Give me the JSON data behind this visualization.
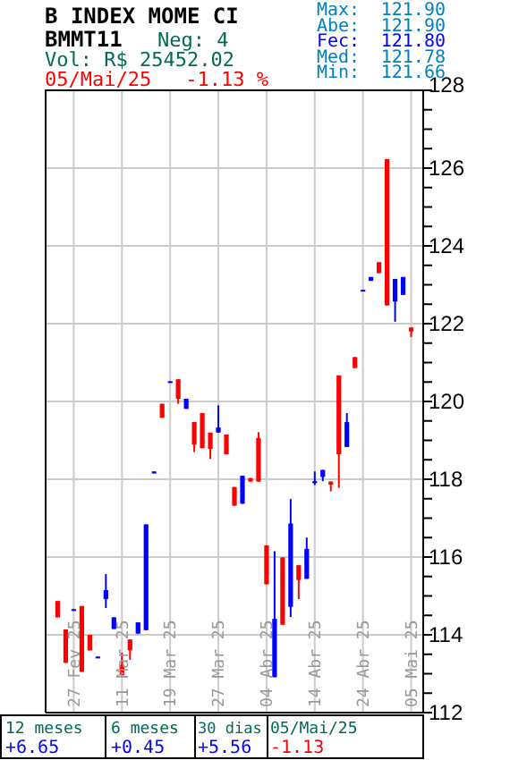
{
  "chart_data": {
    "type": "candlestick",
    "title": "B INDEX MOME CI",
    "subtitle": "BMMT11",
    "categories": [
      null,
      null,
      "27 Fev 25",
      null,
      null,
      null,
      null,
      null,
      "11 Mar 25",
      null,
      null,
      null,
      null,
      null,
      "19 Mar 25",
      null,
      null,
      null,
      null,
      null,
      "27 Mar 25",
      null,
      null,
      null,
      null,
      null,
      "04 Abr 25",
      null,
      null,
      null,
      null,
      null,
      "14 Abr 25",
      null,
      null,
      null,
      null,
      null,
      "24 Abr 25",
      null,
      null,
      null,
      null,
      null,
      "05 Mai 25"
    ],
    "ohlc": [
      [
        114.87,
        114.87,
        114.45,
        114.45
      ],
      [
        114.14,
        114.14,
        113.28,
        113.28
      ],
      [
        114.65,
        114.66,
        114.64,
        114.66
      ],
      [
        114.74,
        114.74,
        113.05,
        113.05
      ],
      [
        114.0,
        114.0,
        113.6,
        113.6
      ],
      [
        113.42,
        113.44,
        113.42,
        113.44
      ],
      [
        114.92,
        115.56,
        114.69,
        115.15
      ],
      [
        114.15,
        114.45,
        114.15,
        114.45
      ],
      [
        113.23,
        113.54,
        112.96,
        112.96
      ],
      [
        113.88,
        113.88,
        113.36,
        113.6
      ],
      [
        114.03,
        114.32,
        114.03,
        114.32
      ],
      [
        114.12,
        116.84,
        114.12,
        116.84
      ],
      [
        118.15,
        118.2,
        118.15,
        118.2
      ],
      [
        119.94,
        119.94,
        119.58,
        119.58
      ],
      [
        120.5,
        120.52,
        120.5,
        120.52
      ],
      [
        120.57,
        120.57,
        119.94,
        120.07
      ],
      [
        119.81,
        120.07,
        119.81,
        120.07
      ],
      [
        119.47,
        119.47,
        118.7,
        118.89
      ],
      [
        119.7,
        119.7,
        118.8,
        118.8
      ],
      [
        119.2,
        119.2,
        118.52,
        118.78
      ],
      [
        119.2,
        119.9,
        119.2,
        119.33
      ],
      [
        119.15,
        119.15,
        118.64,
        118.64
      ],
      [
        117.8,
        117.8,
        117.32,
        117.32
      ],
      [
        117.37,
        118.09,
        117.37,
        118.09
      ],
      [
        118.03,
        118.03,
        117.94,
        117.94
      ],
      [
        119.06,
        119.21,
        117.94,
        117.94
      ],
      [
        116.3,
        116.3,
        115.3,
        115.3
      ],
      [
        112.91,
        116.15,
        112.91,
        114.41
      ],
      [
        115.99,
        115.99,
        114.26,
        114.26
      ],
      [
        114.72,
        117.49,
        114.46,
        116.86
      ],
      [
        115.79,
        115.79,
        114.92,
        115.41
      ],
      [
        115.44,
        116.5,
        115.44,
        116.21
      ],
      [
        117.9,
        118.2,
        117.85,
        117.95
      ],
      [
        118.06,
        118.24,
        117.95,
        118.24
      ],
      [
        117.94,
        117.94,
        117.69,
        117.86
      ],
      [
        120.67,
        120.67,
        117.78,
        118.64
      ],
      [
        118.83,
        119.7,
        118.83,
        119.47
      ],
      [
        121.14,
        121.14,
        120.86,
        120.86
      ],
      [
        122.85,
        122.87,
        122.85,
        122.87
      ],
      [
        123.1,
        123.2,
        123.1,
        123.2
      ],
      [
        123.58,
        123.58,
        123.3,
        123.3
      ],
      [
        126.23,
        126.23,
        122.47,
        122.47
      ],
      [
        122.57,
        123.15,
        122.05,
        123.15
      ],
      [
        122.74,
        123.2,
        122.74,
        123.2
      ],
      [
        121.9,
        121.9,
        121.66,
        121.8
      ]
    ],
    "colors": [
      "#ff0000",
      "#ff0000",
      "#0000ff",
      "#ff0000",
      "#ff0000",
      "#0000ff",
      "#0000ff",
      "#0000ff",
      "#ff0000",
      "#ff0000",
      "#0000ff",
      "#0000ff",
      "#0000ff",
      "#ff0000",
      "#0000ff",
      "#ff0000",
      "#0000ff",
      "#ff0000",
      "#ff0000",
      "#ff0000",
      "#0000ff",
      "#ff0000",
      "#ff0000",
      "#0000ff",
      "#ff0000",
      "#ff0000",
      "#ff0000",
      "#0000ff",
      "#ff0000",
      "#0000ff",
      "#ff0000",
      "#0000ff",
      "#0000ff",
      "#0000ff",
      "#ff0000",
      "#ff0000",
      "#0000ff",
      "#ff0000",
      "#0000ff",
      "#0000ff",
      "#ff0000",
      "#ff0000",
      "#0000ff",
      "#0000ff",
      "#ff0000"
    ],
    "ylim": [
      112,
      128
    ],
    "yticks": [
      112,
      {
        "value": 112.5,
        "label": null
      },
      {
        "value": 113,
        "label": null
      },
      {
        "value": 113.5,
        "label": null
      },
      114,
      {
        "value": 114.5,
        "label": null
      },
      {
        "value": 115,
        "label": null
      },
      {
        "value": 115.5,
        "label": null
      },
      116,
      {
        "value": 116.5,
        "label": null
      },
      {
        "value": 117,
        "label": null
      },
      {
        "value": 117.5,
        "label": null
      },
      118,
      {
        "value": 118.5,
        "label": null
      },
      {
        "value": 119,
        "label": null
      },
      {
        "value": 119.5,
        "label": null
      },
      120,
      {
        "value": 120.5,
        "label": null
      },
      {
        "value": 121,
        "label": null
      },
      {
        "value": 121.5,
        "label": null
      },
      122,
      {
        "value": 122.5,
        "label": null
      },
      {
        "value": 123,
        "label": null
      },
      {
        "value": 123.5,
        "label": null
      },
      124,
      {
        "value": 124.5,
        "label": null
      },
      {
        "value": 125,
        "label": null
      },
      {
        "value": 125.5,
        "label": null
      },
      126,
      {
        "value": 126.5,
        "label": null
      },
      {
        "value": 127,
        "label": null
      },
      {
        "value": 127.5,
        "label": null
      },
      128
    ],
    "grid": true,
    "annotations": [
      "Neg: 4",
      "Vol: R$ 25452.02",
      "05/Mai/25",
      "-1.13 %",
      "Max:",
      "121.90",
      "Abe:",
      "121.90",
      "Fec:",
      "121.80",
      "Med:",
      "121.78",
      "Min:",
      "121.66",
      "12 meses",
      "+6.65",
      "6 meses",
      "+0.45",
      "30 dias",
      "+5.56",
      "05/Mai/25",
      "-1.13"
    ]
  }
}
